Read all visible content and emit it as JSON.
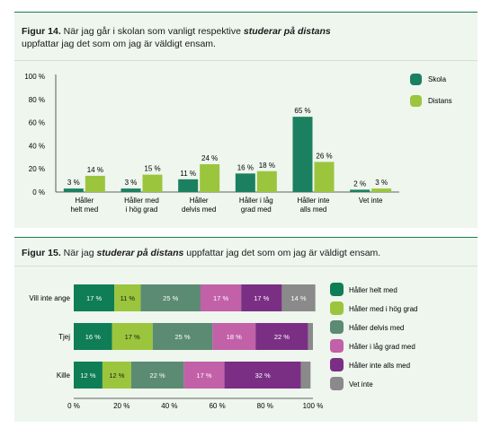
{
  "colors": {
    "skola": "#1b8060",
    "distans": "#9bc53d",
    "haller_helt_med": "#0f7d55",
    "haller_med_i_hog_grad": "#9bc53d",
    "haller_delvis_med": "#5b8b73",
    "haller_i_lag_grad_med": "#c260a8",
    "haller_inte_alls_med": "#7a2f84",
    "vet_inte": "#8a8a8a"
  },
  "fig14": {
    "title_num": "Figur 14.",
    "title_pre": " När jag går i skolan som vanligt respektive ",
    "title_em": "studerar på distans",
    "title_post": "uppfattar jag det som om jag är väldigt ensam."
  },
  "fig15": {
    "title_num": "Figur 15.",
    "title_pre": " När jag ",
    "title_em": "studerar på distans",
    "title_post": " uppfattar jag det som om jag är väldigt ensam."
  },
  "chart_data": [
    {
      "type": "bar",
      "categories": [
        [
          "Håller",
          "helt med"
        ],
        [
          "Håller med",
          "i hög grad"
        ],
        [
          "Håller",
          "delvis med"
        ],
        [
          "Håller i låg",
          "grad med"
        ],
        [
          "Håller inte",
          "alls med"
        ],
        [
          "Vet inte"
        ]
      ],
      "series": [
        {
          "name": "Skola",
          "values": [
            3,
            3,
            11,
            16,
            65,
            2
          ],
          "labels": [
            "3 %",
            "3 %",
            "11 %",
            "16 %",
            "65 %",
            "2 %"
          ]
        },
        {
          "name": "Distans",
          "values": [
            14,
            15,
            24,
            18,
            26,
            3
          ],
          "labels": [
            "14 %",
            "15 %",
            "24 %",
            "18 %",
            "26 %",
            "3 %"
          ]
        }
      ],
      "yticks": [
        "0 %",
        "20 %",
        "40 %",
        "60 %",
        "80 %",
        "100 %"
      ],
      "ylim": [
        0,
        100
      ],
      "legend_position": "top-right"
    },
    {
      "type": "bar",
      "orientation": "horizontal-stacked",
      "categories": [
        "Vill inte ange",
        "Tjej",
        "Kille"
      ],
      "series": [
        {
          "name": "Håller helt med",
          "values": [
            17,
            16,
            12
          ],
          "labels": [
            "17 %",
            "16 %",
            "12 %"
          ]
        },
        {
          "name": "Håller med i hög grad",
          "values": [
            11,
            17,
            12
          ],
          "labels": [
            "11 %",
            "17 %",
            "12 %"
          ]
        },
        {
          "name": "Håller delvis med",
          "values": [
            25,
            25,
            22
          ],
          "labels": [
            "25 %",
            "25 %",
            "22 %"
          ]
        },
        {
          "name": "Håller i låg grad med",
          "values": [
            17,
            18,
            17
          ],
          "labels": [
            "17 %",
            "18 %",
            "17 %"
          ]
        },
        {
          "name": "Håller inte alls med",
          "values": [
            17,
            22,
            32
          ],
          "labels": [
            "17 %",
            "22 %",
            "32 %"
          ]
        },
        {
          "name": "Vet inte",
          "values": [
            14,
            2,
            4
          ],
          "labels": [
            "14 %",
            "",
            ""
          ]
        }
      ],
      "xticks": [
        "0 %",
        "20 %",
        "40 %",
        "60 %",
        "80 %",
        "100 %"
      ],
      "xlim": [
        0,
        100
      ],
      "legend_position": "right"
    }
  ]
}
